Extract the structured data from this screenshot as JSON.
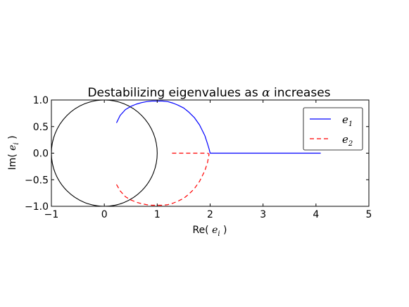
{
  "chart_data": {
    "type": "line",
    "title_prefix": "Destabilizing eigenvalues as ",
    "title_symbol": "α",
    "title_suffix": " increases",
    "xlabel_prefix": "Re( ",
    "xlabel_var": "e",
    "xlabel_sub": "i",
    "xlabel_suffix": " )",
    "ylabel_prefix": "Im( ",
    "ylabel_var": "e",
    "ylabel_sub": "i",
    "ylabel_suffix": " )",
    "xlim": [
      -1,
      5
    ],
    "ylim": [
      -1.0,
      1.0
    ],
    "xticks": [
      -1,
      0,
      1,
      2,
      3,
      4,
      5
    ],
    "xtick_labels": [
      "−1",
      "0",
      "1",
      "2",
      "3",
      "4",
      "5"
    ],
    "yticks": [
      1.0,
      0.5,
      0.0,
      -0.5,
      -1.0
    ],
    "ytick_labels": [
      "1.0",
      "0.5",
      "0.0",
      "−0.5",
      "−1.0"
    ],
    "grid": false,
    "legend_position": "top-right",
    "unit_circle": {
      "center": [
        0,
        0
      ],
      "radius": 1,
      "color": "#000000"
    },
    "series": [
      {
        "name_var": "e",
        "name_sub": "1",
        "color": "#0000ff",
        "style": "solid",
        "x": [
          0.23,
          0.3,
          0.4,
          0.5,
          0.6,
          0.7,
          0.8,
          0.9,
          1.0,
          1.1,
          1.2,
          1.3,
          1.4,
          1.5,
          1.6,
          1.7,
          1.8,
          1.9,
          1.95,
          1.98,
          2.0,
          2.05,
          2.5,
          3.0,
          3.5,
          4.09
        ],
        "y": [
          0.57,
          0.71,
          0.82,
          0.88,
          0.92,
          0.95,
          0.97,
          0.98,
          0.98,
          0.98,
          0.97,
          0.94,
          0.9,
          0.85,
          0.77,
          0.67,
          0.53,
          0.33,
          0.18,
          0.08,
          0.0,
          0.0,
          0.0,
          0.0,
          0.0,
          0.0
        ]
      },
      {
        "name_var": "e",
        "name_sub": "2",
        "color": "#ff0000",
        "style": "dashed",
        "x": [
          0.23,
          0.3,
          0.4,
          0.5,
          0.6,
          0.7,
          0.8,
          0.9,
          1.0,
          1.1,
          1.2,
          1.3,
          1.4,
          1.5,
          1.6,
          1.7,
          1.8,
          1.9,
          1.95,
          1.98,
          1.95,
          1.8,
          1.6,
          1.4,
          1.28
        ],
        "y": [
          -0.59,
          -0.71,
          -0.82,
          -0.88,
          -0.92,
          -0.95,
          -0.97,
          -0.98,
          -0.98,
          -0.98,
          -0.97,
          -0.94,
          -0.9,
          -0.85,
          -0.77,
          -0.67,
          -0.53,
          -0.33,
          -0.18,
          -0.02,
          0.0,
          0.0,
          0.0,
          0.0,
          0.0
        ]
      }
    ]
  }
}
